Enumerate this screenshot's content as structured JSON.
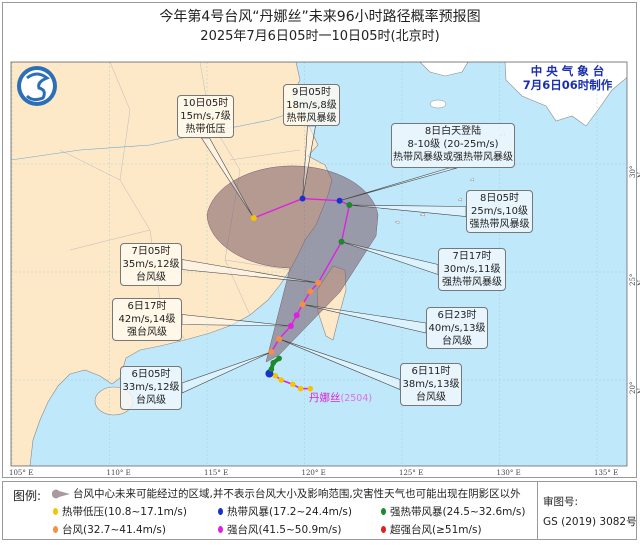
{
  "header": {
    "title": "今年第4号台风“丹娜丝”未来96小时路径概率预报图",
    "subtitle": "2025年7月6日05时一10日05时(北京时)"
  },
  "agency": {
    "name": "中 央 气 象 台",
    "made_at": "7月6日06时制作"
  },
  "typhoon": {
    "name": "丹娜丝",
    "code": "(2504)"
  },
  "axes": {
    "lon_labels": [
      "105° E",
      "110° E",
      "115° E",
      "120° E",
      "125° E",
      "130° E",
      "135° E"
    ],
    "lon_values": [
      105,
      110,
      115,
      120,
      125,
      130,
      135
    ],
    "lat_labels": [
      "30° N",
      "25° N",
      "20° N"
    ],
    "lat_values": [
      30,
      25,
      20
    ]
  },
  "colors": {
    "land": "#fde8c8",
    "sea": "#bfe8fb",
    "track_forecast": "#e020e0",
    "cone": "#7a5a66",
    "td": "#f5c400",
    "ts": "#1a2fd0",
    "sts": "#1a8a2a",
    "ty": "#f59040",
    "sty": "#e020e0",
    "superty": "#e02020"
  },
  "past_track": [
    {
      "lon": 120.3,
      "lat": 19.6,
      "level": "td"
    },
    {
      "lon": 119.8,
      "lat": 19.6,
      "level": "td"
    },
    {
      "lon": 119.4,
      "lat": 19.8,
      "level": "td"
    },
    {
      "lon": 118.8,
      "lat": 20.0,
      "level": "td"
    },
    {
      "lon": 118.5,
      "lat": 20.2,
      "level": "td"
    },
    {
      "lon": 118.2,
      "lat": 20.3,
      "level": "ts"
    },
    {
      "lon": 118.3,
      "lat": 20.5,
      "level": "sts"
    },
    {
      "lon": 118.4,
      "lat": 20.8,
      "level": "sts"
    },
    {
      "lon": 118.7,
      "lat": 21.0,
      "level": "sts"
    }
  ],
  "forecast_track": [
    {
      "lon": 118.3,
      "lat": 21.3,
      "level": "ty"
    },
    {
      "lon": 118.7,
      "lat": 21.9,
      "level": "ty"
    },
    {
      "lon": 119.3,
      "lat": 22.5,
      "level": "sty"
    },
    {
      "lon": 119.6,
      "lat": 23.0,
      "level": "sty"
    },
    {
      "lon": 119.9,
      "lat": 23.5,
      "level": "ty"
    },
    {
      "lon": 120.3,
      "lat": 24.1,
      "level": "ty"
    },
    {
      "lon": 120.7,
      "lat": 24.5,
      "level": "ty"
    },
    {
      "lon": 121.9,
      "lat": 26.4,
      "level": "sts"
    },
    {
      "lon": 122.3,
      "lat": 28.1,
      "level": "sts"
    },
    {
      "lon": 121.8,
      "lat": 28.3,
      "level": "ts"
    },
    {
      "lon": 119.9,
      "lat": 28.4,
      "level": "ts"
    },
    {
      "lon": 117.4,
      "lat": 27.5,
      "level": "td"
    }
  ],
  "labels": [
    {
      "id": "10d05",
      "lines": [
        "10日05时",
        "15m/s,7级",
        "热带低压"
      ],
      "point": 11,
      "land": true
    },
    {
      "id": "9d05",
      "lines": [
        "9日05时",
        "18m/s,8级",
        "热带风暴级"
      ],
      "point": 10,
      "land": true
    },
    {
      "id": "8day",
      "lines": [
        "8日白天登陆",
        "8-10级 (20-25m/s)",
        "热带风暴级或强热带风暴级"
      ],
      "point": 9,
      "land": false
    },
    {
      "id": "8d05",
      "lines": [
        "8日05时",
        "25m/s,10级",
        "强热带风暴级"
      ],
      "point": 8,
      "land": false
    },
    {
      "id": "7d17",
      "lines": [
        "7日17时",
        "30m/s,11级",
        "强热带风暴级"
      ],
      "point": 7,
      "land": false
    },
    {
      "id": "7d05",
      "lines": [
        "7日05时",
        "35m/s,12级",
        "台风级"
      ],
      "point": 6,
      "land": true
    },
    {
      "id": "6d23",
      "lines": [
        "6日23时",
        "40m/s,13级",
        "台风级"
      ],
      "point": 4,
      "land": false
    },
    {
      "id": "6d17",
      "lines": [
        "6日17时",
        "42m/s,14级",
        "强台风级"
      ],
      "point": 2,
      "land": true
    },
    {
      "id": "6d11",
      "lines": [
        "6日11时",
        "38m/s,13级",
        "台风级"
      ],
      "point": 1,
      "land": false
    },
    {
      "id": "6d05",
      "lines": [
        "6日05时",
        "33m/s,12级",
        "台风级"
      ],
      "point": 0,
      "land": false
    }
  ],
  "legend": {
    "title": "图例:",
    "cone_text": "台风中心未来可能经过的区域,并不表示台风大小及影响范围,灾害性天气也可能出现在阴影区以外",
    "items": [
      {
        "label": "热带低压(10.8~17.1m/s)",
        "color": "#f5c400"
      },
      {
        "label": "热带风暴(17.2~24.4m/s)",
        "color": "#1a2fd0"
      },
      {
        "label": "强热带风暴(24.5~32.6m/s)",
        "color": "#1a8a2a"
      },
      {
        "label": "台风(32.7~41.4m/s)",
        "color": "#f59040"
      },
      {
        "label": "强台风(41.5~50.9m/s)",
        "color": "#e020e0"
      },
      {
        "label": "超强台风(≥51m/s)",
        "color": "#e02020"
      }
    ],
    "approval_label": "审图号:",
    "approval_number": "GS (2019) 3082号"
  }
}
